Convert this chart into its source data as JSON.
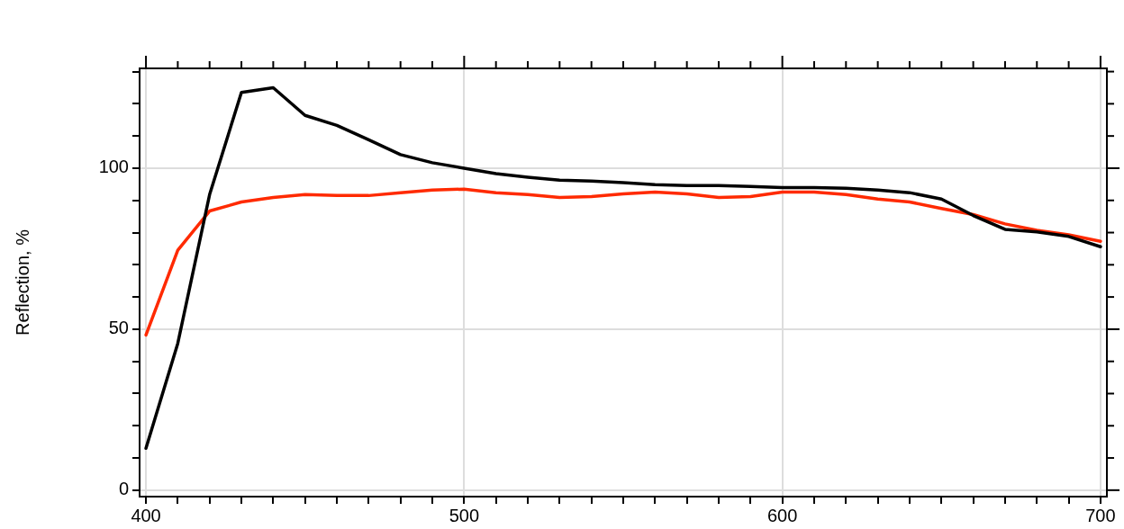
{
  "chart_data": {
    "type": "line",
    "ylabel": "Reflection, %",
    "x": [
      400,
      410,
      420,
      430,
      440,
      450,
      460,
      470,
      480,
      490,
      500,
      510,
      520,
      530,
      540,
      550,
      560,
      570,
      580,
      590,
      600,
      610,
      620,
      630,
      640,
      650,
      660,
      670,
      680,
      690,
      700
    ],
    "series": [
      {
        "color": "#000000",
        "values": [
          13,
          45.6,
          91.8,
          123.5,
          125,
          116.4,
          113.3,
          108.8,
          104.2,
          101.7,
          100,
          98.3,
          97.2,
          96.3,
          96,
          95.5,
          94.9,
          94.6,
          94.6,
          94.3,
          94,
          94,
          93.8,
          93.2,
          92.4,
          90.4,
          85.3,
          81,
          80.2,
          78.8,
          75.6
        ]
      },
      {
        "color": "#ff2a00",
        "values": [
          48.2,
          74.5,
          86.7,
          89.5,
          90.9,
          91.8,
          91.5,
          91.5,
          92.4,
          93.2,
          93.5,
          92.4,
          91.8,
          90.9,
          91.2,
          92,
          92.6,
          92,
          90.9,
          91.2,
          92.6,
          92.6,
          91.8,
          90.4,
          89.5,
          87.5,
          85.6,
          82.7,
          80.7,
          79.3,
          77.3
        ]
      }
    ],
    "xlim": [
      398,
      702
    ],
    "xticks": [
      400,
      {
        "value": 410,
        "label": null
      },
      {
        "value": 420,
        "label": null
      },
      {
        "value": 430,
        "label": null
      },
      {
        "value": 440,
        "label": null
      },
      {
        "value": 450,
        "label": null
      },
      {
        "value": 460,
        "label": null
      },
      {
        "value": 470,
        "label": null
      },
      {
        "value": 480,
        "label": null
      },
      {
        "value": 490,
        "label": null
      },
      500,
      {
        "value": 510,
        "label": null
      },
      {
        "value": 520,
        "label": null
      },
      {
        "value": 530,
        "label": null
      },
      {
        "value": 540,
        "label": null
      },
      {
        "value": 550,
        "label": null
      },
      {
        "value": 560,
        "label": null
      },
      {
        "value": 570,
        "label": null
      },
      {
        "value": 580,
        "label": null
      },
      {
        "value": 590,
        "label": null
      },
      600,
      {
        "value": 610,
        "label": null
      },
      {
        "value": 620,
        "label": null
      },
      {
        "value": 630,
        "label": null
      },
      {
        "value": 640,
        "label": null
      },
      {
        "value": 650,
        "label": null
      },
      {
        "value": 660,
        "label": null
      },
      {
        "value": 670,
        "label": null
      },
      {
        "value": 680,
        "label": null
      },
      {
        "value": 690,
        "label": null
      },
      700
    ],
    "ylim": [
      -2,
      131
    ],
    "yticks": [
      0,
      {
        "value": 10,
        "label": null
      },
      {
        "value": 20,
        "label": null
      },
      {
        "value": 30,
        "label": null
      },
      {
        "value": 40,
        "label": null
      },
      50,
      {
        "value": 60,
        "label": null
      },
      {
        "value": 70,
        "label": null
      },
      {
        "value": 80,
        "label": null
      },
      {
        "value": 90,
        "label": null
      },
      100,
      {
        "value": 110,
        "label": null
      },
      {
        "value": 120,
        "label": null
      },
      {
        "value": 130,
        "label": null
      }
    ],
    "grid": true,
    "marker": "none",
    "line_style": "solid"
  }
}
